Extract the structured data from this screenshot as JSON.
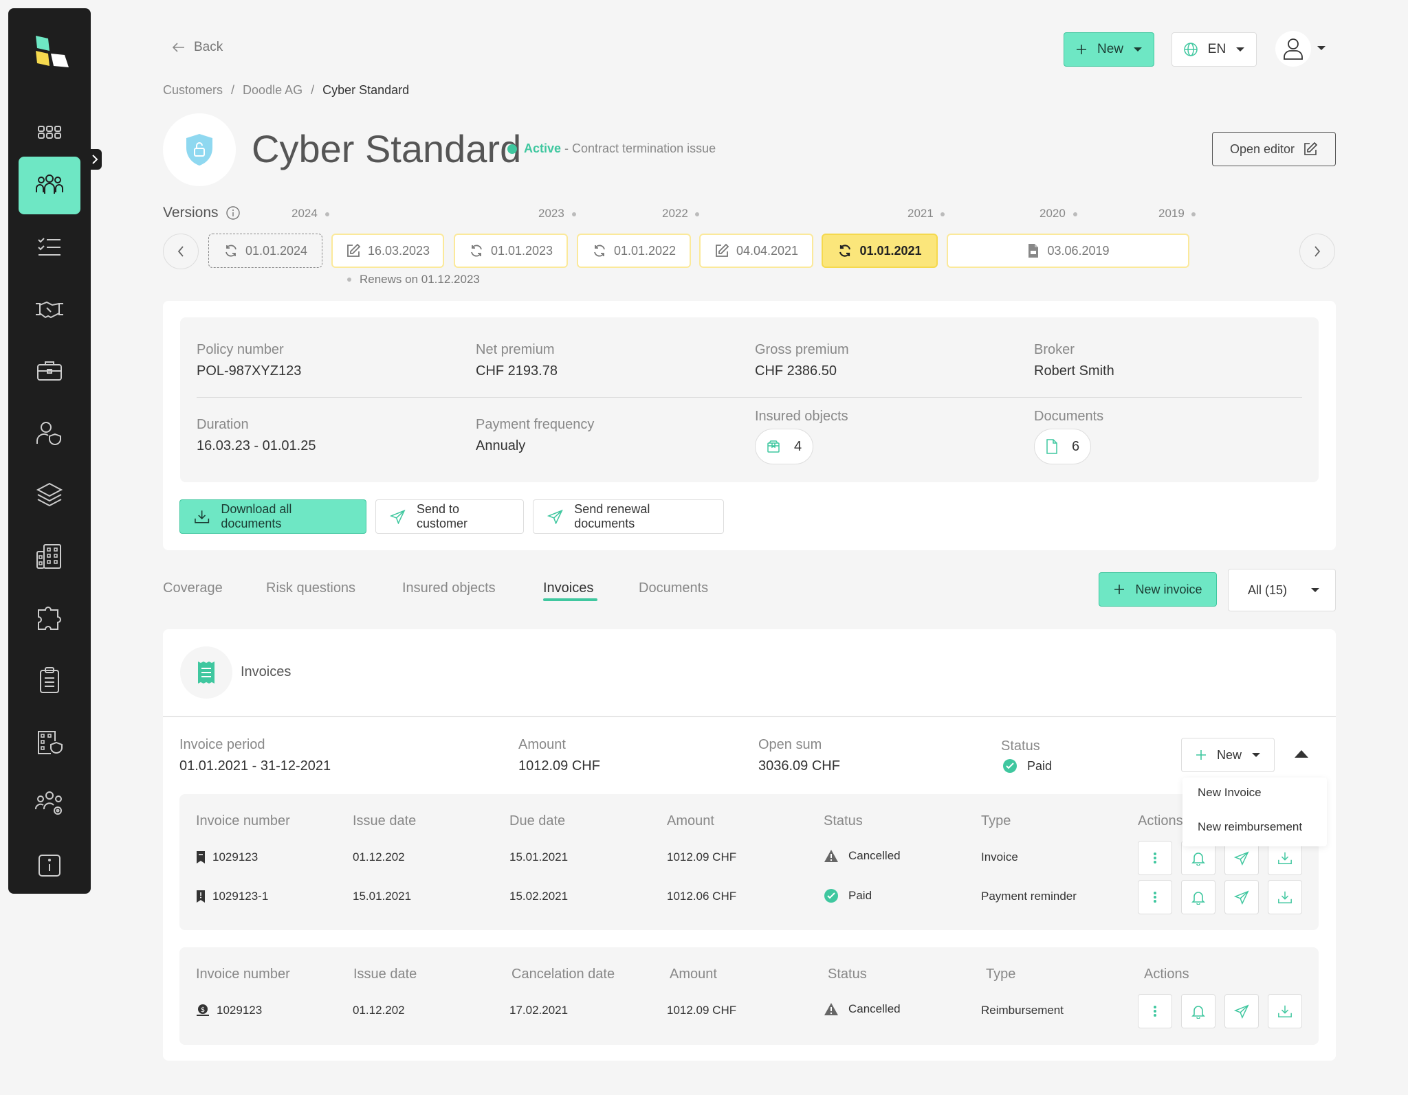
{
  "nav": {
    "back_label": "Back",
    "new_button": "New",
    "language": "EN"
  },
  "breadcrumb": [
    "Customers",
    "Doodle AG",
    "Cyber Standard"
  ],
  "product": {
    "title": "Cyber Standard",
    "status": "Active",
    "status_note": " - Contract termination issue",
    "open_editor": "Open editor"
  },
  "versions": {
    "label": "Versions",
    "years": [
      "2024",
      "2023",
      "2022",
      "2021",
      "2020",
      "2019"
    ],
    "items": [
      {
        "date": "01.01.2024",
        "icon": "refresh-icon"
      },
      {
        "date": "16.03.2023",
        "icon": "edit-icon"
      },
      {
        "date": "01.01.2023",
        "icon": "refresh-icon"
      },
      {
        "date": "01.01.2022",
        "icon": "refresh-icon"
      },
      {
        "date": "04.04.2021",
        "icon": "edit-icon"
      },
      {
        "date": "01.01.2021",
        "icon": "refresh-icon"
      },
      {
        "date": "03.06.2019",
        "icon": "document-icon"
      }
    ],
    "renews": "Renews on 01.12.2023"
  },
  "policy": {
    "policy_number_label": "Policy number",
    "policy_number": "POL-987XYZ123",
    "net_premium_label": "Net premium",
    "net_premium": "CHF 2193.78",
    "gross_premium_label": "Gross premium",
    "gross_premium": "CHF 2386.50",
    "broker_label": "Broker",
    "broker": "Robert Smith",
    "duration_label": "Duration",
    "duration": "16.03.23 - 01.01.25",
    "payment_frequency_label": "Payment frequency",
    "payment_frequency": "Annualy",
    "insured_objects_label": "Insured objects",
    "insured_objects_count": "4",
    "documents_label": "Documents",
    "documents_count": "6"
  },
  "policy_actions": {
    "download_all": "Download all documents",
    "send_to_customer": "Send to customer",
    "send_renewal": "Send renewal documents"
  },
  "tabs": [
    "Coverage",
    "Risk questions",
    "Insured objects",
    "Invoices",
    "Documents"
  ],
  "active_tab": "Invoices",
  "invoice_toolbar": {
    "new_invoice": "New invoice",
    "filter": "All (15)"
  },
  "invoices": {
    "title": "Invoices",
    "period_label": "Invoice period",
    "period": "01.01.2021 - 31-12-2021",
    "amount_label": "Amount",
    "amount": "1012.09 CHF",
    "open_sum_label": "Open sum",
    "open_sum": "3036.09 CHF",
    "status_label": "Status",
    "status": "Paid",
    "new_button": "New",
    "new_menu": [
      "New Invoice",
      "New reimbursement"
    ],
    "table1": {
      "headers": [
        "Invoice number",
        "Issue date",
        "Due date",
        "Amount",
        "Status",
        "Type",
        "Actions"
      ],
      "rows": [
        {
          "number": "1029123",
          "issue": "01.12.202",
          "due": "15.01.2021",
          "amount": "1012.09 CHF",
          "status": "Cancelled",
          "type": "Invoice"
        },
        {
          "number": "1029123-1",
          "issue": "15.01.2021",
          "due": "15.02.2021",
          "amount": "1012.06 CHF",
          "status": "Paid",
          "type": "Payment reminder"
        }
      ]
    },
    "table2": {
      "headers": [
        "Invoice number",
        "Issue date",
        "Cancelation date",
        "Amount",
        "Status",
        "Type",
        "Actions"
      ],
      "rows": [
        {
          "number": "1029123",
          "issue": "01.12.202",
          "cancel": "17.02.2021",
          "amount": "1012.09 CHF",
          "status": "Cancelled",
          "type": "Reimbursement"
        }
      ]
    }
  },
  "colors": {
    "accent": "#6ee7c4",
    "accent_dark": "#3fc79f",
    "sidebar": "#1e1e1e",
    "version_highlight": "#fbe67b"
  }
}
